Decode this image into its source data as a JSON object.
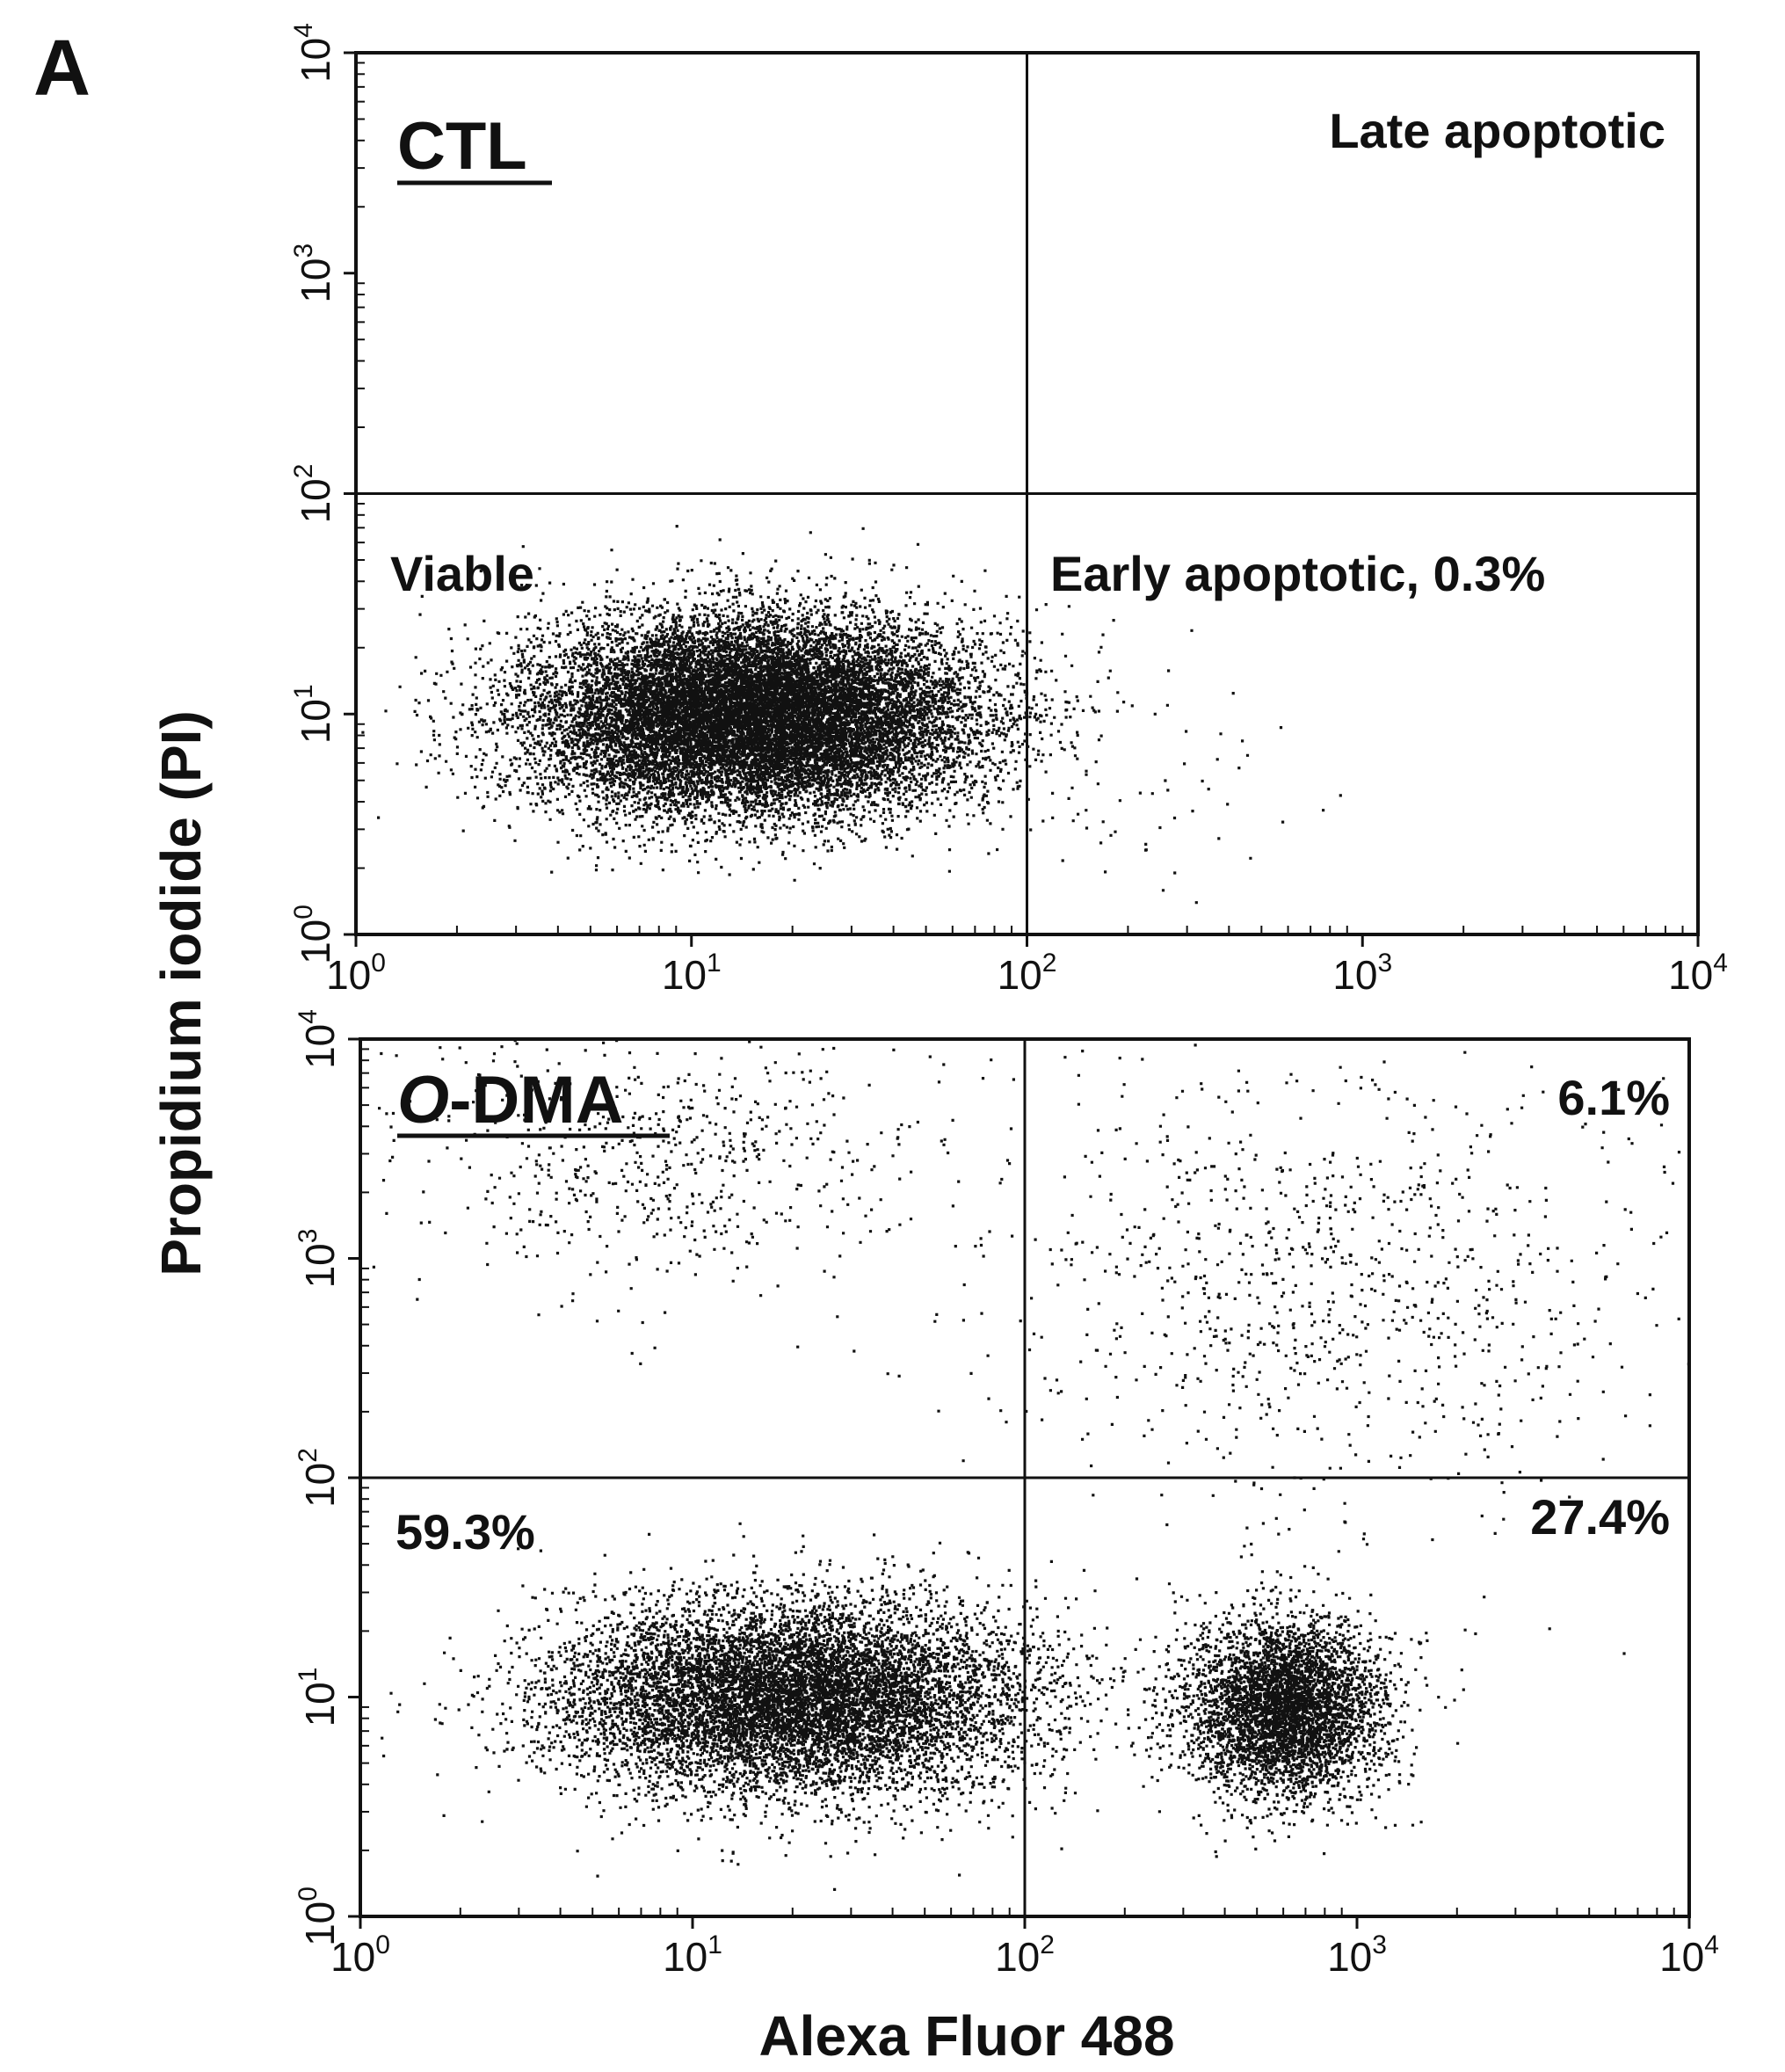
{
  "figure": {
    "panel_letter": "A",
    "colors": {
      "points": "#111111",
      "frame": "#111111",
      "background": "#ffffff"
    }
  },
  "chart_data": [
    {
      "type": "scatter",
      "title": "CTL",
      "x_scale": "log",
      "y_scale": "log",
      "xlim": [
        1,
        10000
      ],
      "ylim": [
        1,
        10000
      ],
      "x_ticks": [
        1,
        10,
        100,
        1000,
        10000
      ],
      "y_ticks": [
        1,
        10,
        100,
        1000,
        10000
      ],
      "gate": {
        "x": 100,
        "y": 100
      },
      "quadrant_labels": {
        "upper_right": "Late apoptotic",
        "lower_left": "Viable",
        "lower_right": "Early apoptotic, 0.3%"
      },
      "populations": [
        {
          "quadrant": "lower-left",
          "x_center": 15,
          "y_center": 10,
          "x_spread_decades": 0.33,
          "y_spread_decades": 0.22,
          "relative_density": 1.0
        },
        {
          "quadrant": "lower-right",
          "x_center": 250,
          "y_center": 6,
          "x_spread_decades": 0.25,
          "y_spread_decades": 0.3,
          "relative_density": 0.003
        }
      ]
    },
    {
      "type": "scatter",
      "title": "O-DMA",
      "title_italic_prefix": "O",
      "title_suffix": "-DMA",
      "x_scale": "log",
      "y_scale": "log",
      "xlim": [
        1,
        10000
      ],
      "ylim": [
        1,
        10000
      ],
      "x_ticks": [
        1,
        10,
        100,
        1000,
        10000
      ],
      "y_ticks": [
        1,
        10,
        100,
        1000,
        10000
      ],
      "gate": {
        "x": 100,
        "y": 100
      },
      "quadrant_labels": {
        "upper_right": "6.1%",
        "lower_left": "59.3%",
        "lower_right": "27.4%"
      },
      "populations": [
        {
          "quadrant": "lower-left",
          "x_center": 20,
          "y_center": 10,
          "x_spread_decades": 0.35,
          "y_spread_decades": 0.22,
          "relative_density": 0.593
        },
        {
          "quadrant": "lower-right",
          "x_center": 600,
          "y_center": 9,
          "x_spread_decades": 0.15,
          "y_spread_decades": 0.2,
          "relative_density": 0.274
        },
        {
          "quadrant": "upper-right",
          "x_center": 800,
          "y_center": 800,
          "x_spread_decades": 0.5,
          "y_spread_decades": 0.5,
          "relative_density": 0.061
        },
        {
          "quadrant": "upper-left",
          "x_center": 8,
          "y_center": 3000,
          "x_spread_decades": 0.4,
          "y_spread_decades": 0.3,
          "relative_density": 0.04
        }
      ]
    }
  ],
  "axes": {
    "xlabel": "Alexa Fluor 488",
    "ylabel": "Propidium iodide (PI)",
    "tick_base": "10",
    "tick_exponents": [
      "0",
      "1",
      "2",
      "3",
      "4"
    ]
  }
}
